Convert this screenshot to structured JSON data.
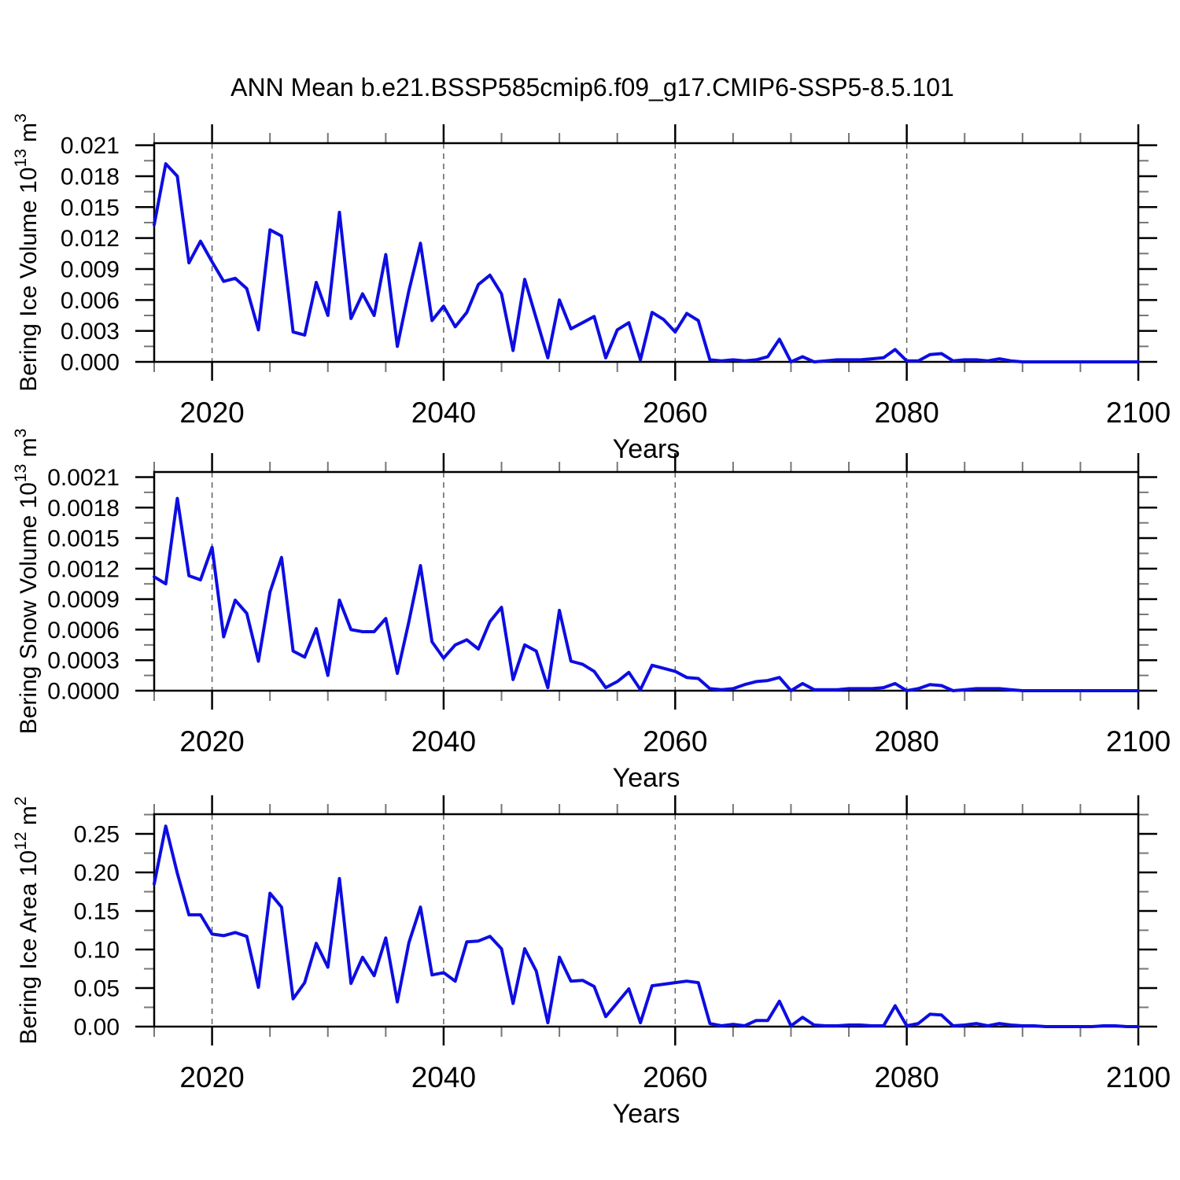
{
  "title": "ANN Mean b.e21.BSSP585cmip6.f09_g17.CMIP6-SSP5-8.5.101",
  "colors": {
    "line": "#0d0de2",
    "frame": "#000000",
    "major_tick": "#000000",
    "minor_tick": "#777777",
    "gridline": "#606060",
    "text": "#000000",
    "background": "#ffffff"
  },
  "chart_data": [
    {
      "type": "line",
      "name": "bering-ice-volume",
      "ylabel": "Bering Ice Volume 10^13 m^3",
      "ylabel_parts": [
        {
          "t": "Bering Ice Volume 10",
          "sup": false
        },
        {
          "t": "13",
          "sup": true
        },
        {
          "t": " m",
          "sup": false
        },
        {
          "t": "3",
          "sup": true
        }
      ],
      "xlabel": "Years",
      "x_start": 2015,
      "x_end": 2100,
      "x_major_ticks": [
        2020,
        2040,
        2060,
        2080,
        2100
      ],
      "x_minor_ticks": [
        2015,
        2025,
        2030,
        2035,
        2045,
        2050,
        2055,
        2065,
        2070,
        2075,
        2085,
        2090,
        2095
      ],
      "grid_x": [
        2020,
        2040,
        2060,
        2080
      ],
      "ylim": [
        0,
        0.0212
      ],
      "y_major_ticks": [
        {
          "v": 0.0,
          "label": "0.000"
        },
        {
          "v": 0.003,
          "label": "0.003"
        },
        {
          "v": 0.006,
          "label": "0.006"
        },
        {
          "v": 0.009,
          "label": "0.009"
        },
        {
          "v": 0.012,
          "label": "0.012"
        },
        {
          "v": 0.015,
          "label": "0.015"
        },
        {
          "v": 0.018,
          "label": "0.018"
        },
        {
          "v": 0.021,
          "label": "0.021"
        }
      ],
      "y_minor_values": [
        0.0015,
        0.0045,
        0.0075,
        0.0105,
        0.0135,
        0.0165,
        0.0195
      ],
      "values": [
        0.0133,
        0.0192,
        0.018,
        0.0096,
        0.0117,
        0.0097,
        0.0078,
        0.0081,
        0.0071,
        0.0031,
        0.0128,
        0.0122,
        0.0029,
        0.0026,
        0.0077,
        0.0045,
        0.0145,
        0.0042,
        0.0066,
        0.0045,
        0.0104,
        0.0015,
        0.0069,
        0.0115,
        0.004,
        0.0054,
        0.0034,
        0.0048,
        0.0075,
        0.0084,
        0.0066,
        0.0011,
        0.008,
        0.0042,
        0.0004,
        0.006,
        0.0032,
        0.0038,
        0.0044,
        0.0004,
        0.0031,
        0.0038,
        0.0002,
        0.0048,
        0.0041,
        0.0029,
        0.0047,
        0.004,
        0.0002,
        0.0001,
        0.0002,
        0.0001,
        0.0002,
        0.0005,
        0.0022,
        0.0,
        0.0005,
        0.0,
        0.0001,
        0.0002,
        0.0002,
        0.0002,
        0.0003,
        0.0004,
        0.0012,
        0.0001,
        0.0001,
        0.0007,
        0.0008,
        0.0001,
        0.0002,
        0.0002,
        0.0001,
        0.0003,
        0.0001,
        0.0,
        0.0,
        0.0,
        0.0,
        0.0,
        0.0,
        0.0,
        0.0,
        0.0,
        0.0,
        0.0
      ]
    },
    {
      "type": "line",
      "name": "bering-snow-volume",
      "ylabel": "Bering Snow Volume 10^13 m^3",
      "ylabel_parts": [
        {
          "t": "Bering Snow Volume 10",
          "sup": false
        },
        {
          "t": "13",
          "sup": true
        },
        {
          "t": " m",
          "sup": false
        },
        {
          "t": "3",
          "sup": true
        }
      ],
      "xlabel": "Years",
      "x_start": 2015,
      "x_end": 2100,
      "x_major_ticks": [
        2020,
        2040,
        2060,
        2080,
        2100
      ],
      "x_minor_ticks": [
        2015,
        2025,
        2030,
        2035,
        2045,
        2050,
        2055,
        2065,
        2070,
        2075,
        2085,
        2090,
        2095
      ],
      "grid_x": [
        2020,
        2040,
        2060,
        2080
      ],
      "ylim": [
        0,
        0.00215
      ],
      "y_major_ticks": [
        {
          "v": 0.0,
          "label": "0.0000"
        },
        {
          "v": 0.0003,
          "label": "0.0003"
        },
        {
          "v": 0.0006,
          "label": "0.0006"
        },
        {
          "v": 0.0009,
          "label": "0.0009"
        },
        {
          "v": 0.0012,
          "label": "0.0012"
        },
        {
          "v": 0.0015,
          "label": "0.0015"
        },
        {
          "v": 0.0018,
          "label": "0.0018"
        },
        {
          "v": 0.0021,
          "label": "0.0021"
        }
      ],
      "y_minor_values": [
        0.00015,
        0.00045,
        0.00075,
        0.00105,
        0.00135,
        0.00165,
        0.00195
      ],
      "values": [
        0.00112,
        0.00105,
        0.00189,
        0.00113,
        0.00109,
        0.00141,
        0.00053,
        0.00089,
        0.00076,
        0.00029,
        0.00097,
        0.00131,
        0.00039,
        0.00033,
        0.00061,
        0.00015,
        0.00089,
        0.0006,
        0.00058,
        0.00058,
        0.00071,
        0.00017,
        0.00068,
        0.00123,
        0.00048,
        0.00032,
        0.00045,
        0.0005,
        0.00041,
        0.00068,
        0.00082,
        0.00011,
        0.00045,
        0.00039,
        3e-05,
        0.00079,
        0.00029,
        0.00026,
        0.00019,
        3e-05,
        9e-05,
        0.00018,
        1e-05,
        0.00025,
        0.00022,
        0.00019,
        0.00013,
        0.00012,
        2e-05,
        1e-05,
        2e-05,
        6e-05,
        9e-05,
        0.0001,
        0.00013,
        0.0,
        7e-05,
        1e-05,
        1e-05,
        1e-05,
        2e-05,
        2e-05,
        2e-05,
        3e-05,
        7e-05,
        0.0,
        2e-05,
        6e-05,
        5e-05,
        0.0,
        1e-05,
        2e-05,
        2e-05,
        2e-05,
        1e-05,
        0.0,
        0.0,
        0.0,
        0.0,
        0.0,
        0.0,
        0.0,
        0.0,
        0.0,
        0.0,
        0.0
      ]
    },
    {
      "type": "line",
      "name": "bering-ice-area",
      "ylabel": "Bering Ice Area 10^12 m^2",
      "ylabel_parts": [
        {
          "t": "Bering Ice Area 10",
          "sup": false
        },
        {
          "t": "12",
          "sup": true
        },
        {
          "t": " m",
          "sup": false
        },
        {
          "t": "2",
          "sup": true
        }
      ],
      "xlabel": "Years",
      "x_start": 2015,
      "x_end": 2100,
      "x_major_ticks": [
        2020,
        2040,
        2060,
        2080,
        2100
      ],
      "x_minor_ticks": [
        2015,
        2025,
        2030,
        2035,
        2045,
        2050,
        2055,
        2065,
        2070,
        2075,
        2085,
        2090,
        2095
      ],
      "grid_x": [
        2020,
        2040,
        2060,
        2080
      ],
      "ylim": [
        0,
        0.2755
      ],
      "y_major_ticks": [
        {
          "v": 0.0,
          "label": "0.00"
        },
        {
          "v": 0.05,
          "label": "0.05"
        },
        {
          "v": 0.1,
          "label": "0.10"
        },
        {
          "v": 0.15,
          "label": "0.15"
        },
        {
          "v": 0.2,
          "label": "0.20"
        },
        {
          "v": 0.25,
          "label": "0.25"
        }
      ],
      "y_minor_values": [
        0.025,
        0.075,
        0.125,
        0.175,
        0.225,
        0.275
      ],
      "values": [
        0.185,
        0.26,
        0.199,
        0.145,
        0.145,
        0.12,
        0.118,
        0.122,
        0.117,
        0.051,
        0.173,
        0.155,
        0.036,
        0.057,
        0.108,
        0.077,
        0.192,
        0.056,
        0.09,
        0.066,
        0.115,
        0.032,
        0.109,
        0.155,
        0.067,
        0.07,
        0.059,
        0.11,
        0.111,
        0.117,
        0.101,
        0.03,
        0.101,
        0.072,
        0.005,
        0.09,
        0.059,
        0.06,
        0.052,
        0.013,
        0.031,
        0.049,
        0.005,
        0.053,
        0.055,
        0.057,
        0.059,
        0.057,
        0.004,
        0.001,
        0.003,
        0.001,
        0.008,
        0.008,
        0.033,
        0.001,
        0.012,
        0.002,
        0.001,
        0.001,
        0.002,
        0.002,
        0.001,
        0.001,
        0.027,
        0.001,
        0.004,
        0.016,
        0.015,
        0.001,
        0.002,
        0.004,
        0.001,
        0.004,
        0.002,
        0.001,
        0.001,
        0.0,
        0.0,
        0.0,
        0.0,
        0.0,
        0.001,
        0.001,
        0.0,
        0.0
      ]
    }
  ]
}
